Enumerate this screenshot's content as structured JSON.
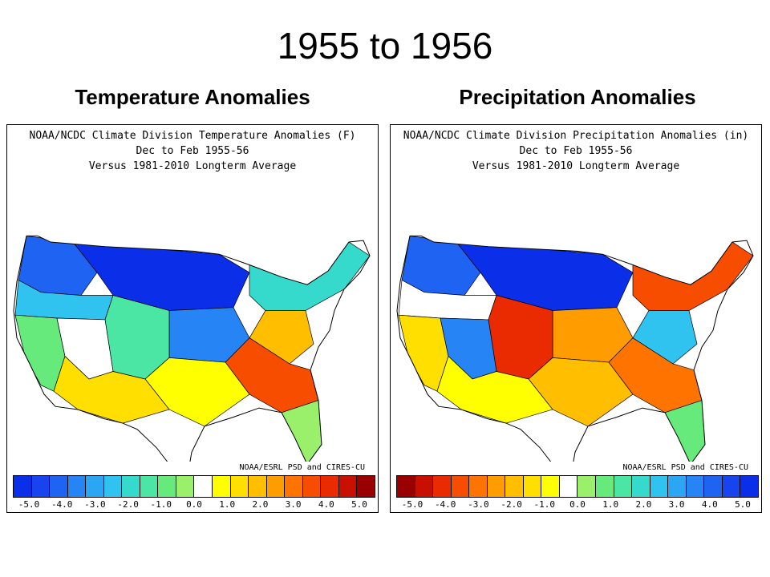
{
  "slide_title": "1955 to 1956",
  "colors": {
    "temperature_scale": [
      "#0b2ee8",
      "#1844f0",
      "#1e63f2",
      "#2684f5",
      "#2ba6f3",
      "#30c3ef",
      "#35dacc",
      "#4be6a4",
      "#66ea7c",
      "#9af06a",
      "#ffffff",
      "#ffff00",
      "#ffdf00",
      "#ffbe00",
      "#ff9c00",
      "#ff7400",
      "#f74d00",
      "#ea2a00",
      "#c91000",
      "#9b0000"
    ],
    "precipitation_scale": [
      "#9b0000",
      "#c91000",
      "#ea2a00",
      "#f74d00",
      "#ff7400",
      "#ff9c00",
      "#ffbe00",
      "#ffdf00",
      "#ffff00",
      "#ffffff",
      "#9af06a",
      "#66ea7c",
      "#4be6a4",
      "#35dacc",
      "#30c3ef",
      "#2ba6f3",
      "#2684f5",
      "#1e63f2",
      "#1844f0",
      "#0b2ee8"
    ]
  },
  "panels": [
    {
      "heading": "Temperature Anomalies",
      "map_title_1": "NOAA/NCDC Climate Division Temperature Anomalies (F)",
      "map_title_2": "Dec to Feb 1955-56",
      "map_title_3": "Versus 1981-2010 Longterm Average",
      "credit": "NOAA/ESRL PSD and CIRES-CU",
      "scale_key": "temperature_scale",
      "tick_labels": [
        "-5.0",
        "-4.0",
        "-3.0",
        "-2.0",
        "-1.0",
        "0.0",
        "1.0",
        "2.0",
        "3.0",
        "4.0",
        "5.0"
      ],
      "region_colors": [
        "#1e63f2",
        "#0b2ee8",
        "#30c3ef",
        "#66ea7c",
        "#2684f5",
        "#35dacc",
        "#4be6a4",
        "#ffffff",
        "#ffbe00",
        "#f74d00",
        "#ffff00",
        "#ffdf00",
        "#9af06a"
      ]
    },
    {
      "heading": "Precipitation Anomalies",
      "map_title_1": "NOAA/NCDC Climate Division Precipitation Anomalies (in)",
      "map_title_2": "Dec to Feb 1955-56",
      "map_title_3": "Versus 1981-2010 Longterm Average",
      "credit": "NOAA/ESRL PSD and CIRES-CU",
      "scale_key": "precipitation_scale",
      "tick_labels": [
        "-5.0",
        "-4.0",
        "-3.0",
        "-2.0",
        "-1.0",
        "0.0",
        "1.0",
        "2.0",
        "3.0",
        "4.0",
        "5.0"
      ],
      "region_colors": [
        "#1e63f2",
        "#0b2ee8",
        "#ffffff",
        "#ffdf00",
        "#ff9c00",
        "#f74d00",
        "#ea2a00",
        "#2684f5",
        "#30c3ef",
        "#ff7400",
        "#ffbe00",
        "#ffff00",
        "#66ea7c"
      ]
    }
  ]
}
